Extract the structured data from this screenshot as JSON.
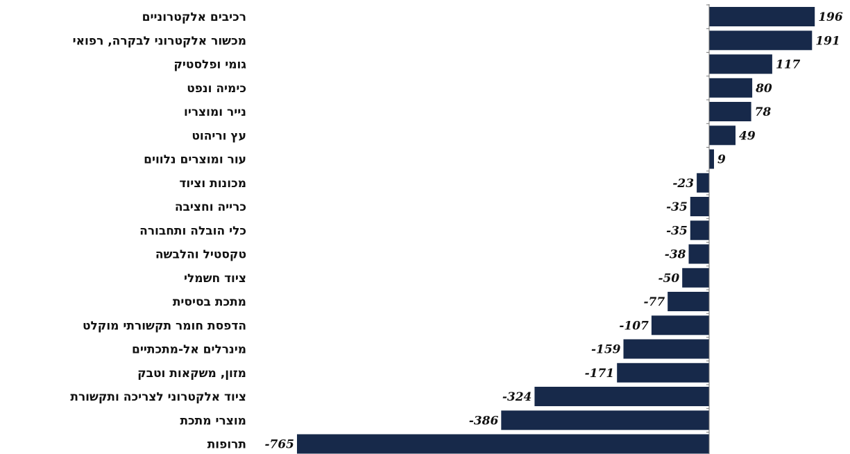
{
  "chart_data": {
    "type": "bar",
    "orientation": "horizontal",
    "categories": [
      "רכיבים אלקטרוניים",
      "מכשור אלקטרוני לבקרה, רפואי",
      "גומי ופלסטיק",
      "כימיה ונפט",
      "נייר ומוצריו",
      "עץ וריהוט",
      "עור ומוצרים נלווים",
      "מכונות וציוד",
      "כרייה וחציבה",
      "כלי הובלה ותחבורה",
      "טקסטיל והלבשה",
      "ציוד חשמלי",
      "מתכת בסיסית",
      "הדפסת חומר תקשורתי מוקלט",
      "מינרלים אל-מתכתיים",
      "מזון, משקאות וטבק",
      "ציוד אלקטרוני לצריכה ותקשורת",
      "מוצרי מתכת",
      "תרופות"
    ],
    "values": [
      196,
      191,
      117,
      80,
      78,
      49,
      9,
      -23,
      -35,
      -35,
      -38,
      -50,
      -77,
      -107,
      -159,
      -171,
      -324,
      -386,
      -765
    ],
    "value_labels": [
      "196",
      "191",
      "117",
      "80",
      "78",
      "49",
      "9",
      "-23",
      "-35",
      "-35",
      "-38",
      "-50",
      "-77",
      "-107",
      "-159",
      "-171",
      "-324",
      "-386",
      "-765"
    ],
    "bar_color": "#17294a",
    "axis_color": "#777777",
    "grid": false,
    "legend": "none"
  }
}
